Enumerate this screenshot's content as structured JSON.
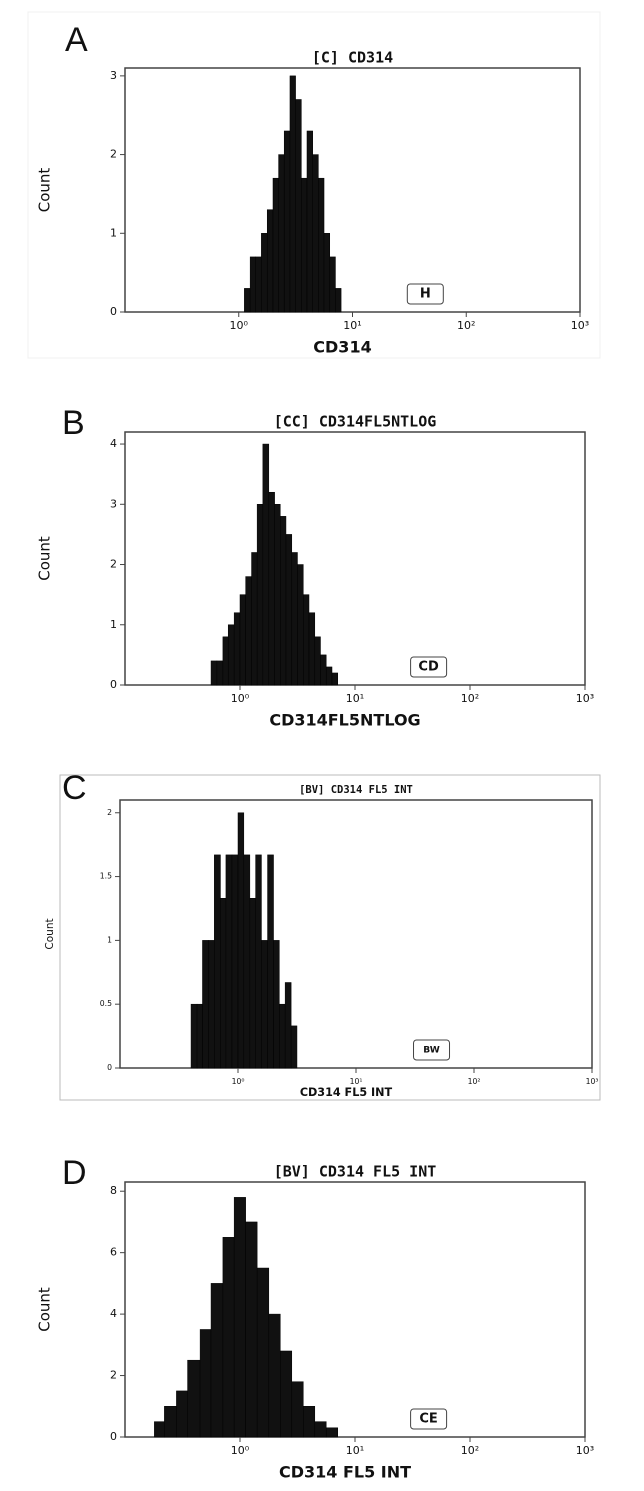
{
  "chart_data": [
    {
      "type": "histogram",
      "panel": "A",
      "title": "[C] CD314",
      "x_label": "CD314",
      "y_label": "Count",
      "annotation": "H",
      "bins": [
        1.12,
        1.26,
        1.41,
        1.58,
        1.78,
        2.0,
        2.24,
        2.51,
        2.82,
        3.16,
        3.55,
        3.98,
        4.47,
        5.01,
        5.62,
        6.31,
        7.08,
        7.94
      ],
      "values": [
        0.3,
        0.7,
        0.7,
        1,
        1.3,
        1.7,
        2,
        2.3,
        3,
        2.7,
        1.7,
        2.3,
        2,
        1.7,
        1,
        0.7,
        0.3
      ],
      "color": "#111111",
      "log_x": true,
      "xlim": [
        0.1,
        1000
      ],
      "xticks": [
        {
          "value": 1,
          "label": "10⁰"
        },
        {
          "value": 10,
          "label": "10¹"
        },
        {
          "value": 100,
          "label": "10²"
        },
        {
          "value": 1000,
          "label": "10³"
        }
      ],
      "ylim": [
        0,
        3.1
      ],
      "yticks": [
        0,
        1,
        2,
        3
      ]
    },
    {
      "type": "histogram",
      "panel": "B",
      "title": "[CC] CD314FL5NTLOG",
      "x_label": "CD314FL5NTLOG",
      "y_label": "Count",
      "annotation": "CD",
      "bins": [
        0.56,
        0.63,
        0.71,
        0.79,
        0.89,
        1.0,
        1.12,
        1.26,
        1.41,
        1.58,
        1.78,
        2.0,
        2.24,
        2.51,
        2.82,
        3.16,
        3.55,
        3.98,
        4.47,
        5.01,
        5.62,
        6.31,
        7.08
      ],
      "values": [
        0.4,
        0.4,
        0.8,
        1,
        1.2,
        1.5,
        1.8,
        2.2,
        3,
        4,
        3.2,
        3,
        2.8,
        2.5,
        2.2,
        2,
        1.5,
        1.2,
        0.8,
        0.5,
        0.3,
        0.2
      ],
      "color": "#111111",
      "log_x": true,
      "xlim": [
        0.1,
        1000
      ],
      "xticks": [
        {
          "value": 1,
          "label": "10⁰"
        },
        {
          "value": 10,
          "label": "10¹"
        },
        {
          "value": 100,
          "label": "10²"
        },
        {
          "value": 1000,
          "label": "10³"
        }
      ],
      "ylim": [
        0,
        4.2
      ],
      "yticks": [
        0,
        1,
        2,
        3,
        4
      ]
    },
    {
      "type": "histogram",
      "panel": "C",
      "title": "[BV] CD314 FL5 INT",
      "x_label": "CD314 FL5 INT",
      "y_label": "Count",
      "annotation": "BW",
      "bins": [
        0.4,
        0.45,
        0.5,
        0.56,
        0.63,
        0.71,
        0.79,
        0.89,
        1.0,
        1.12,
        1.26,
        1.41,
        1.58,
        1.78,
        2.0,
        2.24,
        2.51,
        2.82,
        3.16
      ],
      "values": [
        0.5,
        0.5,
        1,
        1,
        1.67,
        1.33,
        1.67,
        1.67,
        2,
        1.67,
        1.33,
        1.67,
        1,
        1.67,
        1,
        0.5,
        0.67,
        0.33
      ],
      "color": "#111111",
      "log_x": true,
      "xlim": [
        0.1,
        1000
      ],
      "xticks": [
        {
          "value": 1,
          "label": "10⁰"
        },
        {
          "value": 10,
          "label": "10¹"
        },
        {
          "value": 100,
          "label": "10²"
        },
        {
          "value": 1000,
          "label": "10³"
        }
      ],
      "ylim": [
        0,
        2.1
      ],
      "yticks": [
        0,
        0.5,
        1,
        1.5,
        2
      ]
    },
    {
      "type": "histogram",
      "panel": "D",
      "title": "[BV] CD314 FL5 INT",
      "x_label": "CD314 FL5 INT",
      "y_label": "Count",
      "annotation": "CE",
      "bins": [
        0.18,
        0.22,
        0.28,
        0.35,
        0.45,
        0.56,
        0.71,
        0.89,
        1.12,
        1.41,
        1.78,
        2.24,
        2.82,
        3.55,
        4.47,
        5.62,
        7.08
      ],
      "values": [
        0.5,
        1,
        1.5,
        2.5,
        3.5,
        5,
        6.5,
        7.8,
        7,
        5.5,
        4,
        2.8,
        1.8,
        1,
        0.5,
        0.3
      ],
      "color": "#111111",
      "log_x": true,
      "xlim": [
        0.1,
        1000
      ],
      "xticks": [
        {
          "value": 1,
          "label": "10⁰"
        },
        {
          "value": 10,
          "label": "10¹"
        },
        {
          "value": 100,
          "label": "10²"
        },
        {
          "value": 1000,
          "label": "10³"
        }
      ],
      "ylim": [
        0,
        8.3
      ],
      "yticks": [
        0,
        2,
        4,
        6,
        8
      ]
    }
  ]
}
